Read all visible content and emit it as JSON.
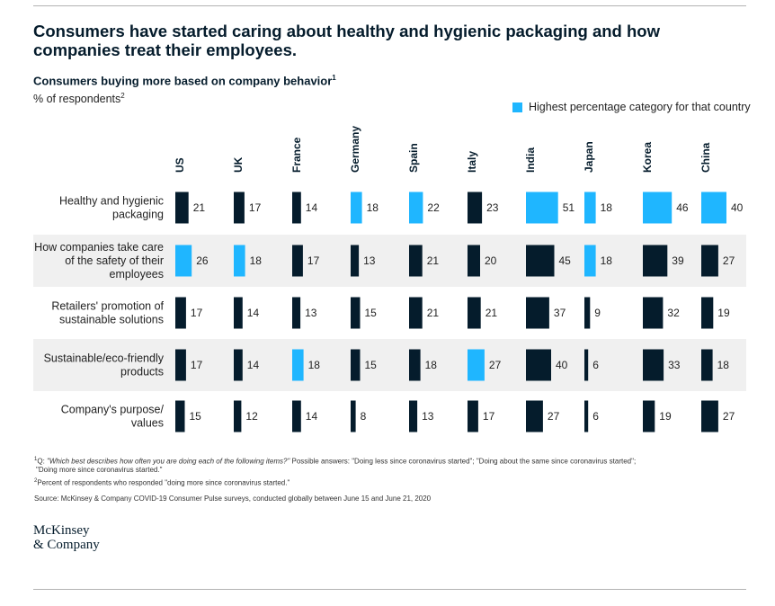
{
  "title": "Consumers have started caring about healthy and hygienic packaging and how companies treat their employees.",
  "subtitle": "Consumers buying more based on company behavior",
  "subtitle_note": "1",
  "unit": "% of respondents",
  "unit_note": "2",
  "legend": {
    "label": "Highest percentage category for that country",
    "color": "#1fb6ff"
  },
  "colors": {
    "highlight": "#1fb6ff",
    "normal": "#051c2c",
    "row_band": "#f0f0f0"
  },
  "chart_data": {
    "type": "bar",
    "orientation": "horizontal-small-multiples",
    "categories": [
      "Healthy and hygienic packaging",
      "How companies take care of the safety of their employees",
      "Retailers' promotion of sustainable solutions",
      "Sustainable/eco-friendly products",
      "Company's purpose/ values"
    ],
    "category_lines": [
      [
        "Healthy and hygienic",
        "packaging"
      ],
      [
        "How companies take care",
        "of the safety of their",
        "employees"
      ],
      [
        "Retailers' promotion of",
        "sustainable solutions"
      ],
      [
        "Sustainable/eco-friendly",
        "products"
      ],
      [
        "Company's purpose/",
        "values"
      ]
    ],
    "series": [
      {
        "name": "US",
        "values": [
          21,
          26,
          17,
          17,
          15
        ],
        "highlight": [
          false,
          true,
          false,
          false,
          false
        ]
      },
      {
        "name": "UK",
        "values": [
          17,
          18,
          14,
          14,
          12
        ],
        "highlight": [
          false,
          true,
          false,
          false,
          false
        ]
      },
      {
        "name": "France",
        "values": [
          14,
          17,
          13,
          18,
          14
        ],
        "highlight": [
          false,
          false,
          false,
          true,
          false
        ]
      },
      {
        "name": "Germany",
        "values": [
          18,
          13,
          15,
          15,
          8
        ],
        "highlight": [
          true,
          false,
          false,
          false,
          false
        ]
      },
      {
        "name": "Spain",
        "values": [
          22,
          21,
          21,
          18,
          13
        ],
        "highlight": [
          true,
          false,
          false,
          false,
          false
        ]
      },
      {
        "name": "Italy",
        "values": [
          23,
          20,
          21,
          27,
          17
        ],
        "highlight": [
          false,
          false,
          false,
          true,
          false
        ]
      },
      {
        "name": "India",
        "values": [
          51,
          45,
          37,
          40,
          27
        ],
        "highlight": [
          true,
          false,
          false,
          false,
          false
        ]
      },
      {
        "name": "Japan",
        "values": [
          18,
          18,
          9,
          6,
          6
        ],
        "highlight": [
          true,
          true,
          false,
          false,
          false
        ]
      },
      {
        "name": "Korea",
        "values": [
          46,
          39,
          32,
          33,
          19
        ],
        "highlight": [
          true,
          false,
          false,
          false,
          false
        ]
      },
      {
        "name": "China",
        "values": [
          40,
          27,
          19,
          18,
          27
        ],
        "highlight": [
          true,
          false,
          false,
          false,
          false
        ]
      }
    ],
    "xlim": [
      0,
      51
    ],
    "legend_position": "top-right",
    "grid": false
  },
  "footnotes": {
    "note1_mark": "1",
    "note1_q": "Q: ",
    "note1_question": "\"Which best describes how often you are doing each of the following items?\"",
    "note1_rest": " Possible answers: \"Doing less since coronavirus started\"; \"Doing about the same since coronavirus started\";",
    "note1_line2": "\"Doing more since coronavirus started.\"",
    "note2_mark": "2",
    "note2": "Percent of respondents who responded \"doing more since coronavirus started.\""
  },
  "source": "Source: McKinsey & Company COVID-19 Consumer Pulse surveys, conducted globally between June 15 and June 21, 2020",
  "logo": {
    "line1": "McKinsey",
    "line2": "& Company"
  }
}
